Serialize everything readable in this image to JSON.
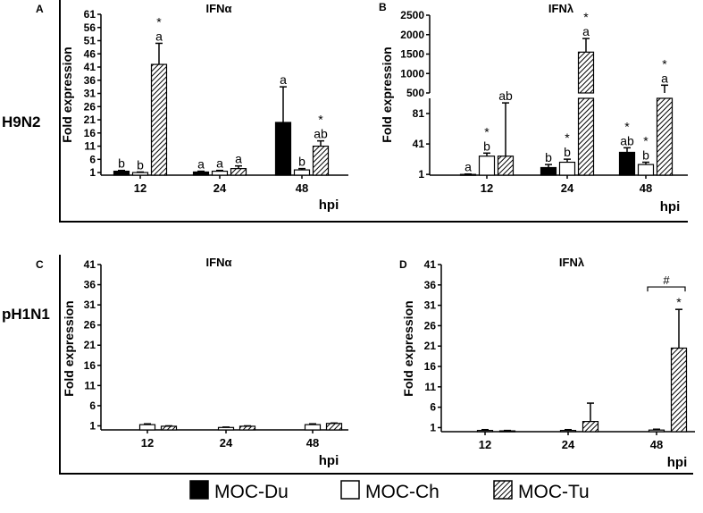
{
  "figure": {
    "row_labels": [
      "H9N2",
      "pH1N1"
    ],
    "legend": [
      {
        "name": "MOC-Du",
        "fill": "black"
      },
      {
        "name": "MOC-Ch",
        "fill": "white"
      },
      {
        "name": "MOC-Tu",
        "fill": "hatched"
      }
    ],
    "colors": {
      "bar_solid": "#000000",
      "bar_open": "#ffffff",
      "axis": "#000000"
    }
  },
  "chart_data": [
    {
      "panel": "A",
      "type": "bar",
      "title": "IFNα",
      "ylabel": "Fold expression",
      "xlabel": "hpi",
      "categories": [
        "12",
        "24",
        "48"
      ],
      "ylim": [
        0,
        61
      ],
      "yticks": [
        "1",
        "6",
        "11",
        "16",
        "21",
        "26",
        "31",
        "36",
        "41",
        "46",
        "51",
        "56",
        "61"
      ],
      "series": [
        {
          "name": "MOC-Du",
          "values": [
            1.5,
            1.2,
            20
          ],
          "err_upper": [
            1.8,
            1.5,
            33.5
          ],
          "labels": [
            [
              "b"
            ],
            [
              "a"
            ],
            [
              "a"
            ]
          ]
        },
        {
          "name": "MOC-Ch",
          "values": [
            1.0,
            1.5,
            2.0
          ],
          "err_upper": [
            1.2,
            1.8,
            2.5
          ],
          "labels": [
            [
              "b"
            ],
            [
              "a"
            ],
            [
              "b"
            ]
          ]
        },
        {
          "name": "MOC-Tu",
          "values": [
            42,
            2.5,
            11
          ],
          "err_upper": [
            50,
            3.5,
            13
          ],
          "labels": [
            [
              "*",
              "a"
            ],
            [
              "a"
            ],
            [
              "*",
              "ab"
            ]
          ]
        }
      ]
    },
    {
      "panel": "B",
      "type": "bar",
      "title": "IFNλ",
      "ylabel": "Fold expression",
      "xlabel": "hpi",
      "categories": [
        "12",
        "24",
        "48"
      ],
      "axis_break": true,
      "ylim_lower": [
        0,
        101
      ],
      "ylim_upper": [
        500,
        2500
      ],
      "yticks_lower": [
        "1",
        "41",
        "81"
      ],
      "yticks_upper": [
        "500",
        "1000",
        "1500",
        "2000",
        "2500"
      ],
      "series": [
        {
          "name": "MOC-Du",
          "values": [
            1,
            10,
            30
          ],
          "err_upper": [
            1.5,
            14,
            36
          ],
          "labels": [
            [
              "a"
            ],
            [
              "b"
            ],
            [
              "*",
              "ab"
            ]
          ]
        },
        {
          "name": "MOC-Ch",
          "values": [
            25,
            17,
            14
          ],
          "err_upper": [
            29,
            21,
            17
          ],
          "labels": [
            [
              "*",
              "b"
            ],
            [
              "*",
              "b"
            ],
            [
              "*",
              "b"
            ]
          ]
        },
        {
          "name": "MOC-Tu",
          "values": [
            25,
            1550,
            500
          ],
          "err_upper": [
            95,
            1900,
            700
          ],
          "labels": [
            [
              "ab"
            ],
            [
              "*",
              "a"
            ],
            [
              "*",
              "a"
            ]
          ]
        }
      ]
    },
    {
      "panel": "C",
      "type": "bar",
      "title": "IFNα",
      "ylabel": "Fold expression",
      "xlabel": "hpi",
      "categories": [
        "12",
        "24",
        "48"
      ],
      "ylim": [
        0,
        41
      ],
      "yticks": [
        "1",
        "6",
        "11",
        "16",
        "21",
        "26",
        "31",
        "36",
        "41"
      ],
      "series": [
        {
          "name": "MOC-Du",
          "values": [
            null,
            null,
            null
          ],
          "err_upper": [
            null,
            null,
            null
          ],
          "labels": [
            [],
            [],
            []
          ]
        },
        {
          "name": "MOC-Ch",
          "values": [
            1.3,
            0.6,
            1.3
          ],
          "err_upper": [
            1.5,
            0.7,
            1.5
          ],
          "labels": [
            [],
            [],
            []
          ]
        },
        {
          "name": "MOC-Tu",
          "values": [
            0.9,
            0.9,
            1.6
          ],
          "err_upper": [
            1.0,
            1.0,
            1.7
          ],
          "labels": [
            [],
            [],
            []
          ]
        }
      ]
    },
    {
      "panel": "D",
      "type": "bar",
      "title": "IFNλ",
      "ylabel": "Fold expression",
      "xlabel": "hpi",
      "categories": [
        "12",
        "24",
        "48"
      ],
      "ylim": [
        0,
        41
      ],
      "yticks": [
        "1",
        "6",
        "11",
        "16",
        "21",
        "26",
        "31",
        "36",
        "41"
      ],
      "series": [
        {
          "name": "MOC-Du",
          "values": [
            null,
            null,
            null
          ],
          "err_upper": [
            null,
            null,
            null
          ],
          "labels": [
            [],
            [],
            []
          ]
        },
        {
          "name": "MOC-Ch",
          "values": [
            0.3,
            0.3,
            0.4
          ],
          "err_upper": [
            0.5,
            0.5,
            0.6
          ],
          "labels": [
            [],
            [],
            []
          ]
        },
        {
          "name": "MOC-Tu",
          "values": [
            0.2,
            2.5,
            20.5
          ],
          "err_upper": [
            0.3,
            7,
            30
          ],
          "labels": [
            [],
            [],
            [
              "*"
            ]
          ]
        }
      ],
      "bracket": {
        "category": "48",
        "between": [
          "MOC-Ch",
          "MOC-Tu"
        ],
        "label": "#"
      }
    }
  ]
}
